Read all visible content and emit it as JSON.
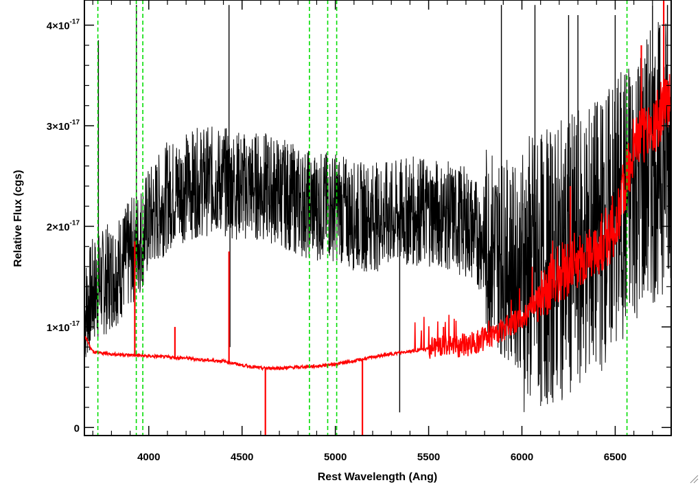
{
  "chart_data": {
    "type": "line",
    "xlabel": "Rest Wavelength (Ang)",
    "ylabel": "Relative Flux (cgs)",
    "xlim": [
      3655,
      6800
    ],
    "ylim": [
      -8e-19,
      4.25e-17
    ],
    "x_ticks": [
      4000,
      4500,
      5000,
      5500,
      6000,
      6500
    ],
    "x_tick_labels": [
      "4000",
      "4500",
      "5000",
      "5500",
      "6000",
      "6500"
    ],
    "y_ticks": [
      0,
      1e-17,
      2e-17,
      3e-17,
      4e-17
    ],
    "y_tick_labels": [
      {
        "mantissa": "0",
        "exponent": ""
      },
      {
        "mantissa": "1×10",
        "exponent": "-17"
      },
      {
        "mantissa": "2×10",
        "exponent": "-17"
      },
      {
        "mantissa": "3×10",
        "exponent": "-17"
      },
      {
        "mantissa": "4×10",
        "exponent": "-17"
      }
    ],
    "grid": false,
    "series": [
      {
        "color": "#000000",
        "style": "spectrum",
        "envelope": [
          [
            3660,
            1.15e-17
          ],
          [
            3700,
            1.35e-17
          ],
          [
            3760,
            1.45e-17
          ],
          [
            3850,
            1.6e-17
          ],
          [
            3950,
            1.85e-17
          ],
          [
            4000,
            2.05e-17
          ],
          [
            4100,
            2.3e-17
          ],
          [
            4200,
            2.4e-17
          ],
          [
            4300,
            2.45e-17
          ],
          [
            4400,
            2.45e-17
          ],
          [
            4500,
            2.4e-17
          ],
          [
            4600,
            2.4e-17
          ],
          [
            4700,
            2.35e-17
          ],
          [
            4800,
            2.25e-17
          ],
          [
            4900,
            2.2e-17
          ],
          [
            5000,
            2.2e-17
          ],
          [
            5100,
            2.1e-17
          ],
          [
            5200,
            2.1e-17
          ],
          [
            5300,
            2.1e-17
          ],
          [
            5400,
            2.15e-17
          ],
          [
            5500,
            2.15e-17
          ],
          [
            5600,
            2.1e-17
          ],
          [
            5700,
            2.05e-17
          ],
          [
            5800,
            1.85e-17
          ],
          [
            5900,
            1.7e-17
          ],
          [
            6000,
            1.55e-17
          ],
          [
            6100,
            1.55e-17
          ],
          [
            6200,
            1.65e-17
          ],
          [
            6300,
            1.75e-17
          ],
          [
            6400,
            1.9e-17
          ],
          [
            6500,
            2.1e-17
          ],
          [
            6600,
            2.4e-17
          ],
          [
            6700,
            2.6e-17
          ],
          [
            6800,
            2.8e-17
          ]
        ],
        "spikes": [
          [
            3730,
            3.85e-17
          ],
          [
            3934,
            4.2e-17
          ],
          [
            4430,
            4.2e-17
          ],
          [
            4435,
            8e-18
          ],
          [
            5890,
            4.2e-17
          ],
          [
            6070,
            4.2e-17
          ],
          [
            6250,
            4.1e-17
          ],
          [
            6300,
            4.1e-17
          ],
          [
            6500,
            4.1e-17
          ],
          [
            6700,
            4.2e-17
          ],
          [
            6780,
            4.2e-17
          ],
          [
            5345,
            1.5e-18
          ]
        ]
      },
      {
        "color": "#ff0000",
        "style": "error-spectrum",
        "envelope": [
          [
            3660,
            9e-18
          ],
          [
            3700,
            7.5e-18
          ],
          [
            3800,
            7.3e-18
          ],
          [
            3900,
            7.2e-18
          ],
          [
            4000,
            7.1e-18
          ],
          [
            4100,
            7e-18
          ],
          [
            4200,
            6.9e-18
          ],
          [
            4300,
            6.7e-18
          ],
          [
            4400,
            6.6e-18
          ],
          [
            4500,
            6.2e-18
          ],
          [
            4600,
            5.9e-18
          ],
          [
            4700,
            5.9e-18
          ],
          [
            4800,
            6e-18
          ],
          [
            4900,
            6.1e-18
          ],
          [
            5000,
            6.3e-18
          ],
          [
            5100,
            6.6e-18
          ],
          [
            5200,
            7e-18
          ],
          [
            5300,
            7.3e-18
          ],
          [
            5400,
            7.6e-18
          ],
          [
            5500,
            7.8e-18
          ],
          [
            5600,
            8e-18
          ],
          [
            5700,
            8.2e-18
          ],
          [
            5800,
            8.8e-18
          ],
          [
            5900,
            9.8e-18
          ],
          [
            6000,
            1.08e-17
          ],
          [
            6050,
            1.2e-17
          ],
          [
            6100,
            1.3e-17
          ],
          [
            6150,
            1.45e-17
          ],
          [
            6200,
            1.55e-17
          ],
          [
            6300,
            1.62e-17
          ],
          [
            6400,
            1.72e-17
          ],
          [
            6500,
            1.95e-17
          ],
          [
            6550,
            2.4e-17
          ],
          [
            6600,
            2.8e-17
          ],
          [
            6700,
            3e-17
          ],
          [
            6780,
            3.2e-17
          ],
          [
            6800,
            3.35e-17
          ]
        ],
        "spikes": [
          [
            3925,
            1.85e-17
          ],
          [
            4140,
            1e-17
          ],
          [
            4430,
            1.75e-17
          ],
          [
            4625,
            -1e-18
          ],
          [
            5145,
            -1e-18
          ],
          [
            5580,
            1e-17
          ],
          [
            5860,
            1e-17
          ],
          [
            6085,
            1.05e-17
          ],
          [
            6260,
            2.4e-17
          ],
          [
            6640,
            3.8e-17
          ],
          [
            6760,
            4.25e-17
          ]
        ]
      }
    ],
    "vertical_markers": {
      "color": "#00dd00",
      "style": "dashed",
      "x": [
        3727,
        3933,
        3968,
        4861,
        4959,
        5007,
        6563
      ]
    }
  }
}
